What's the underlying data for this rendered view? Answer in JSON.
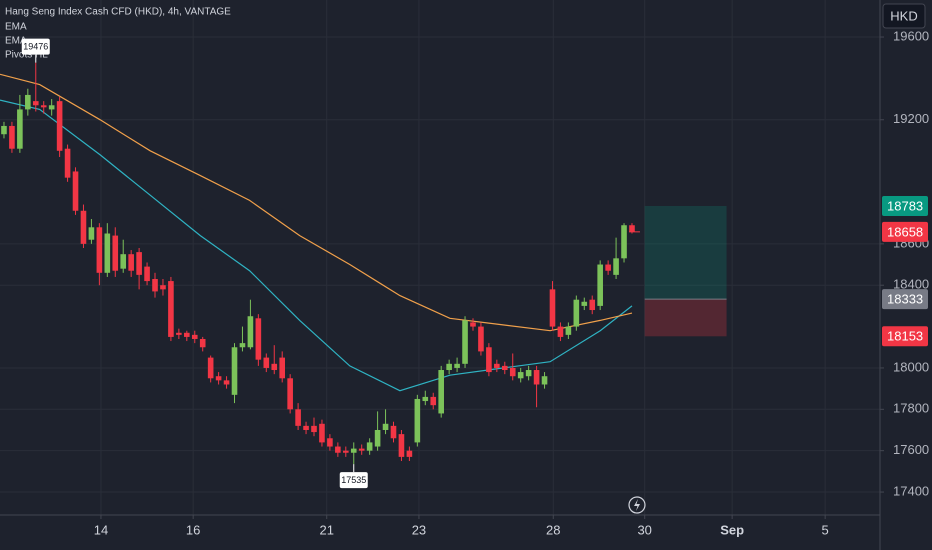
{
  "chart_data": {
    "type": "candlestick",
    "title": "Hang Seng Index Cash CFD (HKD), 4h, VANTAGE",
    "currency": "HKD",
    "up_color": "#7cc25a",
    "down_color": "#f23645",
    "x": [
      0,
      1,
      2,
      3,
      4,
      5,
      6,
      7,
      8,
      9,
      10,
      11,
      12,
      13,
      14,
      15,
      16,
      17,
      18,
      19,
      20,
      21,
      22,
      23,
      24,
      25,
      26,
      27,
      28,
      29,
      30,
      31,
      32,
      33,
      34,
      35,
      36,
      37,
      38,
      39,
      40,
      41,
      42,
      43,
      44,
      45,
      46,
      47,
      48,
      49,
      50,
      51,
      52,
      53,
      54,
      55,
      56,
      57,
      58,
      59,
      60,
      61,
      62,
      63,
      64,
      65,
      66,
      67,
      68,
      69,
      70,
      71,
      72,
      73,
      74,
      75,
      76,
      77,
      78,
      79
    ],
    "open": [
      19130,
      19170,
      19060,
      19250,
      19290,
      19270,
      19250,
      19290,
      19060,
      18950,
      18760,
      18620,
      18680,
      18460,
      18640,
      18480,
      18550,
      18560,
      18490,
      18430,
      18400,
      18420,
      18170,
      18170,
      18160,
      18140,
      18050,
      17960,
      17940,
      17870,
      18100,
      18100,
      18240,
      18050,
      18020,
      18050,
      17950,
      17800,
      17720,
      17720,
      17730,
      17660,
      17620,
      17600,
      17590,
      17610,
      17600,
      17620,
      17700,
      17720,
      17680,
      17600,
      17640,
      17840,
      17860,
      17780,
      17990,
      18000,
      18020,
      18220,
      18200,
      18100,
      18020,
      18010,
      18000,
      17950,
      17960,
      17990,
      17920,
      18380,
      18200,
      18160,
      18200,
      18300,
      18330,
      18300,
      18500,
      18450,
      18530,
      18690
    ],
    "high": [
      19190,
      19190,
      19320,
      19350,
      19476,
      19290,
      19300,
      19310,
      19080,
      18970,
      18790,
      18720,
      18700,
      18700,
      18680,
      18620,
      18570,
      18580,
      18510,
      18460,
      18430,
      18440,
      18190,
      18180,
      18180,
      18150,
      18060,
      17980,
      17960,
      18120,
      18200,
      18330,
      18260,
      18070,
      18110,
      18080,
      17970,
      17830,
      17740,
      17760,
      17750,
      17680,
      17640,
      17620,
      17640,
      17630,
      17660,
      17790,
      17800,
      17740,
      17700,
      17620,
      17870,
      17890,
      17880,
      18010,
      18040,
      18050,
      18250,
      18240,
      18220,
      18120,
      18040,
      18030,
      18070,
      18000,
      18010,
      18010,
      17980,
      18420,
      18220,
      18220,
      18350,
      18340,
      18350,
      18520,
      18520,
      18630,
      18700,
      18700
    ],
    "low": [
      19110,
      19040,
      19040,
      19220,
      19240,
      19230,
      19220,
      19020,
      18900,
      18740,
      18580,
      18600,
      18400,
      18440,
      18440,
      18460,
      18440,
      18380,
      18400,
      18340,
      18350,
      18130,
      18140,
      18130,
      18120,
      18080,
      17930,
      17920,
      17900,
      17830,
      18080,
      18090,
      18010,
      17980,
      17970,
      17930,
      17780,
      17700,
      17680,
      17670,
      17620,
      17600,
      17570,
      17570,
      17535,
      17580,
      17580,
      17600,
      17680,
      17640,
      17550,
      17550,
      17620,
      17820,
      17800,
      17760,
      17970,
      17980,
      18000,
      18180,
      18060,
      17960,
      17980,
      17970,
      17940,
      17930,
      17940,
      17810,
      17900,
      18180,
      18130,
      18140,
      18180,
      18280,
      18260,
      18280,
      18450,
      18430,
      18510,
      18650
    ],
    "close": [
      19170,
      19060,
      19250,
      19320,
      19270,
      19260,
      19270,
      19050,
      18920,
      18760,
      18600,
      18680,
      18460,
      18650,
      18470,
      18550,
      18470,
      18450,
      18420,
      18370,
      18380,
      18150,
      18160,
      18150,
      18140,
      18100,
      17950,
      17940,
      17920,
      18100,
      18120,
      18250,
      18040,
      18000,
      17990,
      17950,
      17800,
      17720,
      17700,
      17690,
      17640,
      17620,
      17590,
      17590,
      17610,
      17600,
      17640,
      17700,
      17730,
      17660,
      17570,
      17570,
      17850,
      17860,
      17820,
      17990,
      18020,
      18020,
      18230,
      18200,
      18080,
      17980,
      18000,
      17990,
      17960,
      17980,
      17990,
      17920,
      17960,
      18200,
      18150,
      18200,
      18330,
      18320,
      18280,
      18500,
      18470,
      18530,
      18690,
      18658
    ],
    "series": [
      {
        "name": "EMA",
        "color": "#2fb3c3",
        "x": [
          -0.5,
          4.5,
          12.1,
          18.4,
          24.7,
          30.9,
          37.2,
          43.5,
          49.8,
          56.1,
          62.4,
          68.7,
          75,
          79
        ],
        "values": [
          19295,
          19250,
          19030,
          18835,
          18640,
          18470,
          18230,
          18010,
          17890,
          17965,
          17998,
          18030,
          18180,
          18300
        ]
      },
      {
        "name": "EMA",
        "color": "#f0a04b",
        "x": [
          -0.5,
          4.5,
          12.1,
          18.4,
          24.7,
          30.9,
          37.2,
          43.5,
          49.8,
          56.1,
          62.4,
          68.7,
          75,
          79
        ],
        "values": [
          19420,
          19370,
          19200,
          19050,
          18930,
          18810,
          18640,
          18500,
          18350,
          18240,
          18210,
          18180,
          18230,
          18265
        ]
      }
    ],
    "pivots": {
      "name": "Pivots HL",
      "points": [
        {
          "x": 4,
          "value": 19476
        },
        {
          "x": 44,
          "value": 17535
        }
      ]
    },
    "position": {
      "x_start": 80.6,
      "x_end": 90.9,
      "target": 18783,
      "entry": 18333,
      "stop": 18153,
      "target_color": "#089981",
      "entry_color": "#787b86",
      "stop_color": "#f23645"
    },
    "last_price": 18658,
    "last_price_color": "#f23645",
    "xlim": [
      -0.5,
      110.2
    ],
    "ylim": [
      17289,
      19779
    ],
    "yticks": [
      17400,
      17600,
      17800,
      18000,
      18400,
      18600,
      19200,
      19600
    ],
    "xticks": [
      {
        "value": 12.2,
        "label": "14"
      },
      {
        "value": 23.8,
        "label": "16"
      },
      {
        "value": 40.6,
        "label": "21"
      },
      {
        "value": 52.2,
        "label": "23"
      },
      {
        "value": 69.1,
        "label": "28"
      },
      {
        "value": 80.6,
        "label": "30"
      },
      {
        "value": 91.6,
        "label": "Sep"
      },
      {
        "value": 103.3,
        "label": "5"
      }
    ],
    "grid": true
  }
}
